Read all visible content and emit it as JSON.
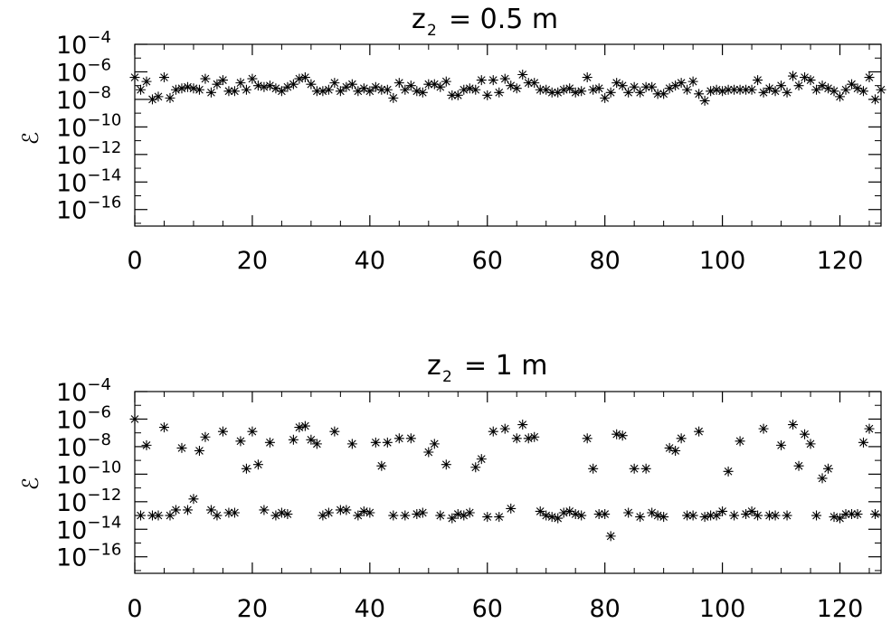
{
  "colors": {
    "background": "#ffffff",
    "ink": "#000000"
  },
  "chart_data": [
    {
      "type": "scatter",
      "marker": "asterisk",
      "title_lhs": "z",
      "title_sub": "2",
      "title_rhs": "= 0.5 m",
      "ylabel": "ℰ",
      "y_scale": "log",
      "xlim": [
        0,
        127
      ],
      "x_ticks": [
        0,
        20,
        40,
        60,
        80,
        100,
        120
      ],
      "ylim_exp": [
        -17.2,
        -4
      ],
      "y_tick_exps": [
        -4,
        -6,
        -8,
        -10,
        -12,
        -14,
        -16
      ],
      "grid": false,
      "y": [
        -6.4,
        -7.3,
        -6.7,
        -8.0,
        -7.8,
        -6.4,
        -7.9,
        -7.3,
        -7.2,
        -7.1,
        -7.2,
        -7.3,
        -6.5,
        -7.5,
        -6.9,
        -6.6,
        -7.4,
        -7.4,
        -6.8,
        -7.3,
        -6.5,
        -7.0,
        -7.1,
        -7.0,
        -7.2,
        -7.4,
        -7.1,
        -6.9,
        -6.5,
        -6.4,
        -6.9,
        -7.4,
        -7.4,
        -7.3,
        -6.8,
        -7.4,
        -7.1,
        -6.9,
        -7.4,
        -7.2,
        -7.4,
        -7.1,
        -7.3,
        -7.3,
        -7.9,
        -6.8,
        -7.3,
        -7.0,
        -7.4,
        -7.5,
        -6.9,
        -6.9,
        -7.1,
        -6.7,
        -7.7,
        -7.7,
        -7.3,
        -7.2,
        -7.3,
        -6.6,
        -7.7,
        -6.6,
        -7.5,
        -6.5,
        -7.0,
        -7.2,
        -6.2,
        -6.8,
        -6.8,
        -7.3,
        -7.3,
        -7.5,
        -7.5,
        -7.3,
        -7.2,
        -7.5,
        -7.4,
        -6.4,
        -7.3,
        -7.2,
        -7.9,
        -7.5,
        -6.8,
        -7.0,
        -7.5,
        -7.1,
        -7.5,
        -7.1,
        -7.1,
        -7.6,
        -7.6,
        -7.2,
        -7.0,
        -6.8,
        -7.3,
        -6.7,
        -7.6,
        -8.1,
        -7.4,
        -7.3,
        -7.4,
        -7.3,
        -7.3,
        -7.3,
        -7.3,
        -7.3,
        -6.6,
        -7.5,
        -7.2,
        -7.4,
        -7.0,
        -7.5,
        -6.3,
        -7.0,
        -6.4,
        -6.6,
        -7.3,
        -7.0,
        -7.2,
        -7.4,
        -7.8,
        -7.3,
        -6.9,
        -7.2,
        -7.4,
        -6.4,
        -8.0,
        -7.3
      ]
    },
    {
      "type": "scatter",
      "marker": "asterisk",
      "title_lhs": "z",
      "title_sub": "2",
      "title_rhs": "= 1 m",
      "ylabel": "ℰ",
      "y_scale": "log",
      "xlim": [
        0,
        127
      ],
      "x_ticks": [
        0,
        20,
        40,
        60,
        80,
        100,
        120
      ],
      "ylim_exp": [
        -17.2,
        -4
      ],
      "y_tick_exps": [
        -4,
        -6,
        -8,
        -10,
        -12,
        -14,
        -16
      ],
      "grid": false,
      "y": [
        -6.0,
        -13.0,
        -7.9,
        -13.0,
        -13.0,
        -6.6,
        -13.0,
        -12.6,
        -8.1,
        -12.6,
        -11.8,
        -8.3,
        -7.3,
        -12.6,
        -13.0,
        -6.9,
        -12.8,
        -12.8,
        -7.6,
        -9.6,
        -6.9,
        -9.3,
        -12.6,
        -7.7,
        -13.0,
        -12.8,
        -12.9,
        -7.5,
        -6.6,
        -6.5,
        -7.5,
        -7.8,
        -13.0,
        -12.8,
        -6.9,
        -12.6,
        -12.6,
        -7.8,
        -13.0,
        -12.7,
        -12.8,
        -7.7,
        -9.4,
        -7.7,
        -13.0,
        -7.4,
        -13.0,
        -7.4,
        -12.9,
        -12.8,
        -8.4,
        -7.8,
        -13.0,
        -9.3,
        -13.2,
        -12.9,
        -13.0,
        -12.8,
        -9.5,
        -8.9,
        -13.1,
        -6.9,
        -13.1,
        -6.7,
        -12.5,
        -7.4,
        -6.4,
        -7.4,
        -7.3,
        -12.7,
        -13.0,
        -13.1,
        -13.2,
        -12.8,
        -12.7,
        -12.9,
        -13.0,
        -7.4,
        -9.6,
        -12.9,
        -12.9,
        -14.5,
        -7.1,
        -7.2,
        -12.8,
        -9.6,
        -13.1,
        -9.6,
        -12.8,
        -13.0,
        -13.1,
        -8.1,
        -8.3,
        -7.4,
        -13.0,
        -13.0,
        -6.9,
        -13.1,
        -13.0,
        -13.0,
        -12.7,
        -9.8,
        -13.0,
        -7.6,
        -12.9,
        -12.7,
        -13.0,
        -6.7,
        -13.0,
        -13.0,
        -7.9,
        -13.0,
        -6.4,
        -9.4,
        -7.1,
        -7.8,
        -13.0,
        -10.3,
        -9.6,
        -13.1,
        -13.2,
        -12.9,
        -12.9,
        -12.9,
        -7.7,
        -6.7,
        -12.9
      ]
    }
  ]
}
